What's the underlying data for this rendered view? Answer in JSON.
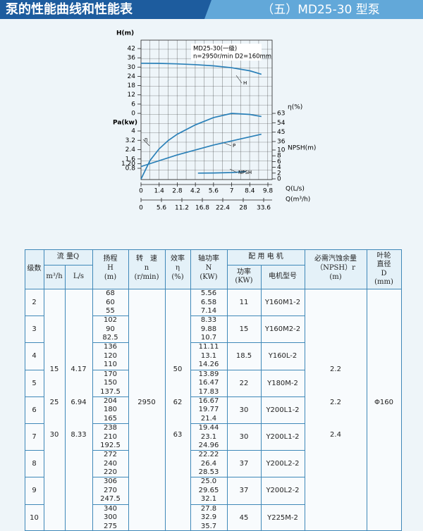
{
  "header": {
    "title": "泵的性能曲线和性能表",
    "model": "（五）MD25-30 型泵"
  },
  "chart_data": {
    "type": "line",
    "annotations": [
      "MD25-30(一级)",
      "n=2950r/min  D2=160mm"
    ],
    "color": "#2a80b8",
    "axes": {
      "h": {
        "title": "H(m)",
        "lim": [
          0,
          42
        ],
        "ticks": [
          0,
          6,
          12,
          18,
          24,
          30,
          36,
          42
        ]
      },
      "pa": {
        "title": "Pa(kw)",
        "lim": [
          0.8,
          4
        ],
        "ticks": [
          0.8,
          {
            "value": 1.2,
            "label": "1.20"
          },
          1.6,
          2.4,
          3.2,
          4
        ]
      },
      "eta": {
        "title": "η(%)",
        "lim": [
          36,
          63
        ],
        "ticks": [
          36,
          45,
          54,
          63
        ]
      },
      "npsh": {
        "title": "NPSH(m)",
        "lim": [
          0,
          10
        ],
        "ticks": [
          0,
          2,
          4,
          6,
          8,
          10
        ]
      },
      "x": {
        "title": "Q(L/s)",
        "lim": [
          0,
          9.8
        ],
        "ticks": [
          0,
          1.4,
          2.8,
          4.2,
          5.6,
          7,
          8.4,
          9.8
        ]
      },
      "x2": {
        "title": "Q(m³/h)",
        "lim": [
          0,
          33.6
        ],
        "ticks": [
          0,
          5.6,
          11.2,
          16.8,
          22.4,
          28,
          33.6
        ]
      }
    },
    "series": [
      {
        "name": "H",
        "axis": "h",
        "x": [
          0,
          1.4,
          2.8,
          4.2,
          5.6,
          7,
          8.4,
          9.3
        ],
        "values": [
          32.5,
          32.4,
          32.1,
          31.6,
          30.8,
          29.6,
          27.6,
          25.4
        ]
      },
      {
        "name": "P",
        "axis": "pa",
        "x": [
          0,
          2.8,
          5.6,
          8.4,
          9.3
        ],
        "values": [
          0.95,
          1.95,
          2.8,
          3.5,
          3.72
        ]
      },
      {
        "name": "η",
        "axis": "eta",
        "x": [
          0,
          0.7,
          1.4,
          2.1,
          2.8,
          4.2,
          5.6,
          7,
          8.4,
          9.3
        ],
        "values": [
          0,
          18,
          29,
          37,
          43,
          52,
          59,
          63,
          62,
          60
        ]
      },
      {
        "name": "NPSH",
        "axis": "npsh",
        "x": [
          4.4,
          5.6,
          7,
          8.1
        ],
        "values": [
          2.0,
          2.05,
          2.2,
          2.5
        ]
      }
    ]
  },
  "table": {
    "columns": {
      "stage": [
        "级数"
      ],
      "flow": [
        "流 量Q"
      ],
      "flow_m3h": [
        "m³/h"
      ],
      "flow_ls": [
        "L/s"
      ],
      "head": [
        "扬程",
        "H",
        "(m)"
      ],
      "speed": [
        "转　速",
        "n",
        "(r/min)"
      ],
      "efficiency": [
        "效率",
        "η",
        "(%)"
      ],
      "power": [
        "轴功率",
        "N",
        "(KW)"
      ],
      "motor": [
        "配 用 电 机"
      ],
      "motor_kw": [
        "功率",
        "(KW)"
      ],
      "motor_model": [
        "电机型号"
      ],
      "npsh": [
        "必需汽蚀余量",
        "（NPSH）r",
        "(m)"
      ],
      "impeller": [
        "叶轮",
        "直径",
        "D",
        "(mm)"
      ]
    },
    "rows": [
      {
        "stage": "2",
        "head": [
          "68",
          "60",
          "55"
        ],
        "power": [
          "5.56",
          "6.58",
          "7.14"
        ],
        "motor_kw": "11",
        "motor_model": "Y160M1-2"
      },
      {
        "stage": "3",
        "head": [
          "102",
          "90",
          "82.5"
        ],
        "power": [
          "8.33",
          "9.88",
          "10.7"
        ],
        "motor_kw": "15",
        "motor_model": "Y160M2-2"
      },
      {
        "stage": "4",
        "head": [
          "136",
          "120",
          "110"
        ],
        "power": [
          "11.11",
          "13.1",
          "14.26"
        ],
        "motor_kw": "18.5",
        "motor_model": "Y160L-2"
      },
      {
        "stage": "5",
        "head": [
          "170",
          "150",
          "137.5"
        ],
        "power": [
          "13.89",
          "16.47",
          "17.83"
        ],
        "motor_kw": "22",
        "motor_model": "Y180M-2"
      },
      {
        "stage": "6",
        "head": [
          "204",
          "180",
          "165"
        ],
        "power": [
          "16.67",
          "19.77",
          "21.4"
        ],
        "motor_kw": "30",
        "motor_model": "Y200L1-2"
      },
      {
        "stage": "7",
        "head": [
          "238",
          "210",
          "192.5"
        ],
        "power": [
          "19.44",
          "23.1",
          "24.96"
        ],
        "motor_kw": "30",
        "motor_model": "Y200L1-2"
      },
      {
        "stage": "8",
        "head": [
          "272",
          "240",
          "220"
        ],
        "power": [
          "22.22",
          "26.4",
          "28.53"
        ],
        "motor_kw": "37",
        "motor_model": "Y200L2-2"
      },
      {
        "stage": "9",
        "head": [
          "306",
          "270",
          "247.5"
        ],
        "power": [
          "25.0",
          "29.65",
          "32.1"
        ],
        "motor_kw": "37",
        "motor_model": "Y200L2-2"
      },
      {
        "stage": "10",
        "head": [
          "340",
          "300",
          "275"
        ],
        "power": [
          "27.8",
          "32.9",
          "35.7"
        ],
        "motor_kw": "45",
        "motor_model": "Y225M-2"
      }
    ],
    "flow_m3h": [
      "15",
      "25",
      "30"
    ],
    "flow_ls": [
      "4.17",
      "6.94",
      "8.33"
    ],
    "speed": "2950",
    "efficiency": [
      "50",
      "62",
      "63"
    ],
    "npsh": [
      "2.2",
      "2.2",
      "2.4"
    ],
    "impeller": "Φ160"
  }
}
